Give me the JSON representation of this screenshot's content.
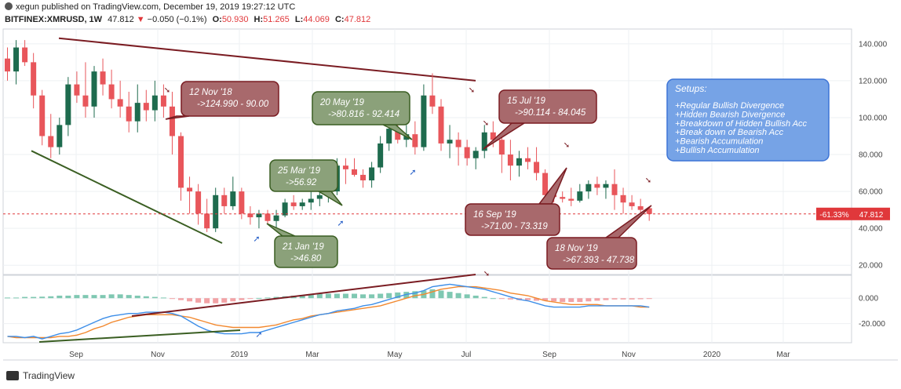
{
  "header": {
    "publisher_line": "xegun published on TradingView.com, December 19, 2019 19:27:12 UTC",
    "symbol": "BITFINEX:XMRUSD, 1W",
    "last": "47.812",
    "change": "−0.050 (−0.1%)",
    "o_label": "O:",
    "o": "50.930",
    "h_label": "H:",
    "h": "51.265",
    "l_label": "L:",
    "l": "44.069",
    "c_label": "C:",
    "c": "47.812"
  },
  "footer": {
    "brand": "TradingView"
  },
  "colors": {
    "up": "#1e6b4e",
    "down": "#e8565b",
    "grid": "#eef0f3",
    "macd": "#3d8ee8",
    "signal": "#f2882e",
    "dark_red": "#7a1c22",
    "dark_green": "#3a5e22"
  },
  "chart_data": [
    {
      "type": "candlestick",
      "title": "BITFINEX:XMRUSD, 1W",
      "ylim": [
        15,
        148
      ],
      "price_ticks": [
        "140.000",
        "120.000",
        "100.000",
        "80.000",
        "60.000",
        "40.000",
        "20.000"
      ],
      "x_ticks": [
        "Sep",
        "Nov",
        "2019",
        "Mar",
        "May",
        "Jul",
        "Sep",
        "Nov",
        "2020",
        "Mar"
      ],
      "last_price_label": "47.812",
      "last_pct_label": "-61.33%",
      "last_price": 47.812,
      "candles": [
        [
          132,
          138,
          120,
          125
        ],
        [
          125,
          142,
          118,
          138
        ],
        [
          138,
          142,
          128,
          130
        ],
        [
          130,
          135,
          105,
          112
        ],
        [
          112,
          115,
          85,
          90
        ],
        [
          90,
          102,
          78,
          84
        ],
        [
          84,
          100,
          80,
          96
        ],
        [
          96,
          122,
          90,
          118
        ],
        [
          118,
          125,
          108,
          112
        ],
        [
          112,
          130,
          100,
          106
        ],
        [
          106,
          128,
          100,
          125
        ],
        [
          125,
          132,
          112,
          118
        ],
        [
          118,
          126,
          105,
          110
        ],
        [
          110,
          120,
          100,
          106
        ],
        [
          106,
          114,
          92,
          98
        ],
        [
          98,
          118,
          92,
          108
        ],
        [
          108,
          115,
          98,
          104
        ],
        [
          104,
          120,
          98,
          112
        ],
        [
          112,
          118,
          100,
          106
        ],
        [
          106,
          114,
          80,
          90
        ],
        [
          90,
          92,
          55,
          62
        ],
        [
          62,
          68,
          48,
          60
        ],
        [
          60,
          64,
          42,
          48
        ],
        [
          48,
          56,
          38,
          40
        ],
        [
          40,
          62,
          38,
          58
        ],
        [
          58,
          62,
          48,
          52
        ],
        [
          52,
          68,
          50,
          60
        ],
        [
          60,
          62,
          45,
          48
        ],
        [
          48,
          52,
          42,
          46
        ],
        [
          46,
          50,
          40,
          48
        ],
        [
          48,
          50,
          42,
          44
        ],
        [
          44,
          50,
          40,
          47
        ],
        [
          47,
          56,
          46,
          54
        ],
        [
          54,
          58,
          50,
          52
        ],
        [
          52,
          56,
          50,
          54
        ],
        [
          54,
          60,
          50,
          56
        ],
        [
          56,
          62,
          52,
          58
        ],
        [
          58,
          64,
          54,
          60
        ],
        [
          60,
          78,
          58,
          74
        ],
        [
          74,
          78,
          64,
          72
        ],
        [
          72,
          78,
          68,
          69
        ],
        [
          69,
          72,
          62,
          66
        ],
        [
          66,
          76,
          62,
          73
        ],
        [
          73,
          90,
          70,
          86
        ],
        [
          86,
          104,
          82,
          94
        ],
        [
          94,
          98,
          86,
          88
        ],
        [
          88,
          96,
          84,
          91
        ],
        [
          91,
          98,
          80,
          84
        ],
        [
          84,
          118,
          82,
          112
        ],
        [
          112,
          124,
          102,
          106
        ],
        [
          106,
          110,
          82,
          86
        ],
        [
          86,
          96,
          78,
          88
        ],
        [
          88,
          92,
          74,
          84
        ],
        [
          84,
          88,
          74,
          78
        ],
        [
          78,
          84,
          72,
          82
        ],
        [
          82,
          96,
          78,
          92
        ],
        [
          92,
          98,
          84,
          88
        ],
        [
          88,
          92,
          70,
          80
        ],
        [
          80,
          88,
          66,
          74
        ],
        [
          74,
          82,
          68,
          78
        ],
        [
          78,
          84,
          72,
          76
        ],
        [
          76,
          84,
          66,
          70
        ],
        [
          70,
          72,
          56,
          58
        ],
        [
          58,
          60,
          54,
          57
        ],
        [
          57,
          60,
          54,
          56
        ],
        [
          56,
          62,
          52,
          55
        ],
        [
          55,
          64,
          54,
          60
        ],
        [
          60,
          66,
          56,
          64
        ],
        [
          64,
          68,
          58,
          62
        ],
        [
          62,
          66,
          56,
          64
        ],
        [
          64,
          72,
          50,
          58
        ],
        [
          58,
          62,
          48,
          54
        ],
        [
          54,
          58,
          50,
          52
        ],
        [
          52,
          56,
          48,
          50
        ],
        [
          50.93,
          51.265,
          44.069,
          47.812
        ]
      ]
    },
    {
      "type": "line",
      "title": "MACD",
      "ylim": [
        -35,
        18
      ],
      "ticks": [
        "0.000",
        "-20.000"
      ],
      "series": [],
      "histogram": [
        0.5,
        0.5,
        1,
        1,
        1.2,
        1.5,
        2,
        2,
        2.5,
        2.5,
        2.5,
        2.5,
        3,
        3,
        2.5,
        2,
        1.5,
        1,
        0.5,
        -0.5,
        -1.5,
        -2.5,
        -3.5,
        -4,
        -4,
        -3.5,
        -2.5,
        -1.5,
        -0.5,
        0.2,
        0.5,
        1,
        1.5,
        2,
        2.5,
        3,
        3.5,
        3.5,
        3.5,
        3.5,
        3.5,
        3,
        3,
        3.5,
        4,
        4.5,
        5,
        5.5,
        6,
        7,
        6,
        5,
        4,
        3,
        2,
        1,
        0,
        -0.5,
        -1,
        -1.5,
        -1.5,
        -2,
        -2,
        -2.5,
        -3,
        -3,
        -3,
        -2.5,
        -2,
        -1.5,
        -1,
        -1,
        -1,
        -0.8,
        -0.5
      ],
      "macd": [
        -30,
        -30,
        -31,
        -30,
        -32,
        -30,
        -28,
        -27,
        -25,
        -22,
        -19,
        -16,
        -14,
        -13,
        -12,
        -12,
        -11,
        -11,
        -11,
        -12,
        -14,
        -18,
        -22,
        -25,
        -27,
        -28,
        -28,
        -28,
        -27,
        -27,
        -25,
        -23,
        -21,
        -19,
        -17,
        -15,
        -13,
        -12,
        -10,
        -9,
        -8,
        -6,
        -5,
        -3,
        -1,
        1,
        3,
        4,
        6,
        9,
        10,
        11,
        10,
        9,
        8,
        7,
        5,
        3,
        1,
        -1,
        -2,
        -4,
        -6,
        -7,
        -7,
        -7,
        -7,
        -6,
        -6,
        -6,
        -6,
        -6,
        -6,
        -6,
        -7
      ],
      "signal": [
        -30,
        -31,
        -31,
        -31,
        -31,
        -31,
        -30,
        -30,
        -29,
        -27,
        -24,
        -22,
        -19,
        -17,
        -15,
        -14,
        -13,
        -13,
        -13,
        -13,
        -14,
        -15,
        -17,
        -19,
        -21,
        -22,
        -23,
        -23,
        -23,
        -23,
        -22,
        -21,
        -19,
        -17,
        -16,
        -14,
        -13,
        -12,
        -11,
        -10,
        -9,
        -8,
        -7,
        -6,
        -4,
        -2,
        0,
        2,
        3,
        5,
        7,
        8,
        9,
        9,
        9,
        8,
        7,
        6,
        4,
        3,
        2,
        0,
        -2,
        -3,
        -4,
        -5,
        -5,
        -5,
        -5,
        -6,
        -6,
        -6,
        -6,
        -7,
        -7
      ]
    }
  ],
  "annotations": {
    "callouts": [
      {
        "line1": "12 Nov '18",
        "line2": "->124.990 - 90.00"
      },
      {
        "line1": "20 May '19",
        "line2": "->80.816 - 92.414"
      },
      {
        "line1": "15 Jul '19",
        "line2": "->90.114 - 84.045"
      },
      {
        "line1": "25 Mar '19",
        "line2": "->56.92"
      },
      {
        "line1": "21 Jan '19",
        "line2": "->46.80"
      },
      {
        "line1": "16 Sep '19",
        "line2": "->71.00 - 73.319"
      },
      {
        "line1": "18 Nov '19",
        "line2": "->67.393 - 47.738"
      }
    ],
    "setups_title": "Setups:",
    "setups": [
      "+Regular Bullish Divergence",
      "+Hidden Bearish Divergence",
      "+Breakdown of Hidden Bullish Acc",
      "+Break down of Bearish Acc",
      "+Bearish Accumulation",
      "+Bullish Accumulation"
    ]
  }
}
